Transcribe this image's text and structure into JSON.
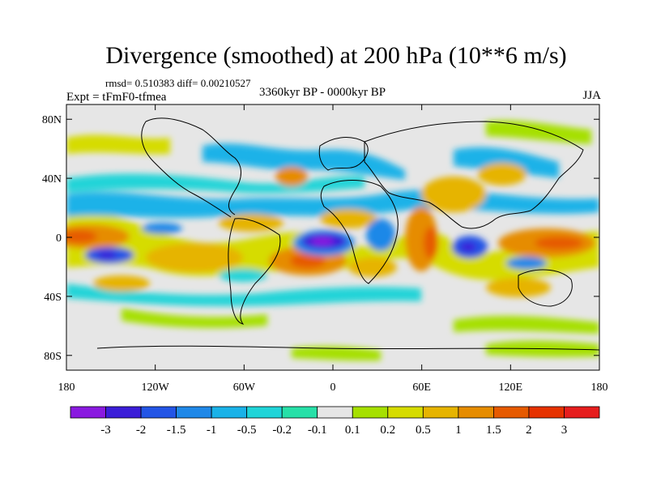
{
  "header": {
    "title": "Divergence (smoothed) at 200 hPa (10**6 m/s)",
    "stats": "rmsd= 0.510383 diff= 0.00210527",
    "experiment": "Expt = tFmF0-tfmea",
    "period": "3360kyr BP - 0000kyr BP",
    "season": "JJA"
  },
  "chart_data": {
    "type": "heatmap",
    "title": "Divergence (smoothed) at 200 hPa (10**6 m/s)",
    "xlabel": "",
    "ylabel": "",
    "xlim": [
      -180,
      180
    ],
    "ylim": [
      -90,
      90
    ],
    "x_ticks": [
      {
        "value": -180,
        "label": "180"
      },
      {
        "value": -120,
        "label": "120W"
      },
      {
        "value": -60,
        "label": "60W"
      },
      {
        "value": 0,
        "label": "0"
      },
      {
        "value": 60,
        "label": "60E"
      },
      {
        "value": 120,
        "label": "120E"
      },
      {
        "value": 180,
        "label": "180"
      }
    ],
    "y_ticks": [
      {
        "value": 80,
        "label": "80N"
      },
      {
        "value": 40,
        "label": "40N"
      },
      {
        "value": 0,
        "label": "0"
      },
      {
        "value": -40,
        "label": "40S"
      },
      {
        "value": -80,
        "label": "80S"
      }
    ],
    "colorbar": {
      "colors": [
        "#8a1ae0",
        "#3b1ed8",
        "#2355e6",
        "#1f88e8",
        "#1ab2e8",
        "#20d4d8",
        "#27e0a8",
        "#e6e6e6",
        "#a6e000",
        "#d6dc00",
        "#e6b400",
        "#e68c00",
        "#e65a00",
        "#e63200",
        "#e61e1e"
      ],
      "labels": [
        "-3",
        "-2",
        "-1.5",
        "-1",
        "-0.5",
        "-0.2",
        "-0.1",
        "0.1",
        "0.2",
        "0.5",
        "1",
        "1.5",
        "2",
        "3"
      ]
    },
    "features": [
      {
        "name": "strong convergence tropical Atlantic",
        "lon": -15,
        "lat": -3,
        "value": -3
      },
      {
        "name": "convergence central Pacific",
        "lon": -150,
        "lat": -10,
        "value": -2
      },
      {
        "name": "convergence Indian Ocean",
        "lon": 90,
        "lat": -5,
        "value": -2
      },
      {
        "name": "divergence East Pacific",
        "lon": -175,
        "lat": 2,
        "value": 1
      },
      {
        "name": "divergence South Atlantic",
        "lon": -20,
        "lat": -15,
        "value": 1.5
      },
      {
        "name": "divergence East Africa",
        "lon": 45,
        "lat": 0,
        "value": 1.5
      },
      {
        "name": "divergence Maritime Continent",
        "lon": 150,
        "lat": 0,
        "value": 1.5
      },
      {
        "name": "divergence East Asia",
        "lon": 115,
        "lat": 30,
        "value": 1
      }
    ]
  }
}
